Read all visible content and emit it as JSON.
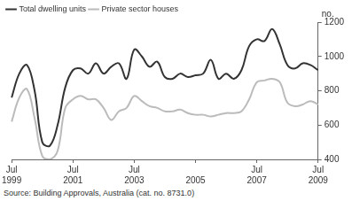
{
  "chart_data": {
    "type": "line",
    "y_label": "no.",
    "source": "Source: Building Approvals, Australia (cat. no. 8731.0)",
    "categories": [
      "Jul 1999",
      null,
      null,
      null,
      null,
      null,
      null,
      null,
      "Jul 2001",
      null,
      null,
      null,
      null,
      null,
      null,
      null,
      "Jul 2003",
      null,
      null,
      null,
      null,
      null,
      null,
      null,
      "2005",
      null,
      null,
      null,
      null,
      null,
      null,
      null,
      "Jul 2007",
      null,
      null,
      null,
      null,
      null,
      null,
      null,
      "Jul 2009"
    ],
    "series": [
      {
        "name": "Total dwelling units",
        "color": "#333333",
        "values": [
          760,
          900,
          950,
          800,
          500,
          480,
          600,
          820,
          920,
          930,
          900,
          960,
          900,
          940,
          960,
          870,
          1040,
          1000,
          940,
          970,
          880,
          870,
          900,
          880,
          890,
          900,
          980,
          870,
          900,
          870,
          920,
          1060,
          1100,
          1090,
          1160,
          1070,
          950,
          930,
          960,
          950,
          920
        ]
      },
      {
        "name": "Private sector houses",
        "color": "#bbbbbb",
        "values": [
          620,
          760,
          810,
          640,
          420,
          400,
          450,
          700,
          750,
          770,
          750,
          750,
          700,
          630,
          680,
          700,
          770,
          740,
          710,
          700,
          680,
          680,
          690,
          670,
          660,
          660,
          650,
          660,
          670,
          670,
          680,
          750,
          850,
          860,
          870,
          850,
          730,
          710,
          720,
          740,
          720
        ]
      }
    ],
    "ylim": [
      400,
      1200
    ],
    "yticks": [
      400,
      600,
      800,
      1000,
      1200
    ],
    "grid": false,
    "legend": "upper left"
  }
}
